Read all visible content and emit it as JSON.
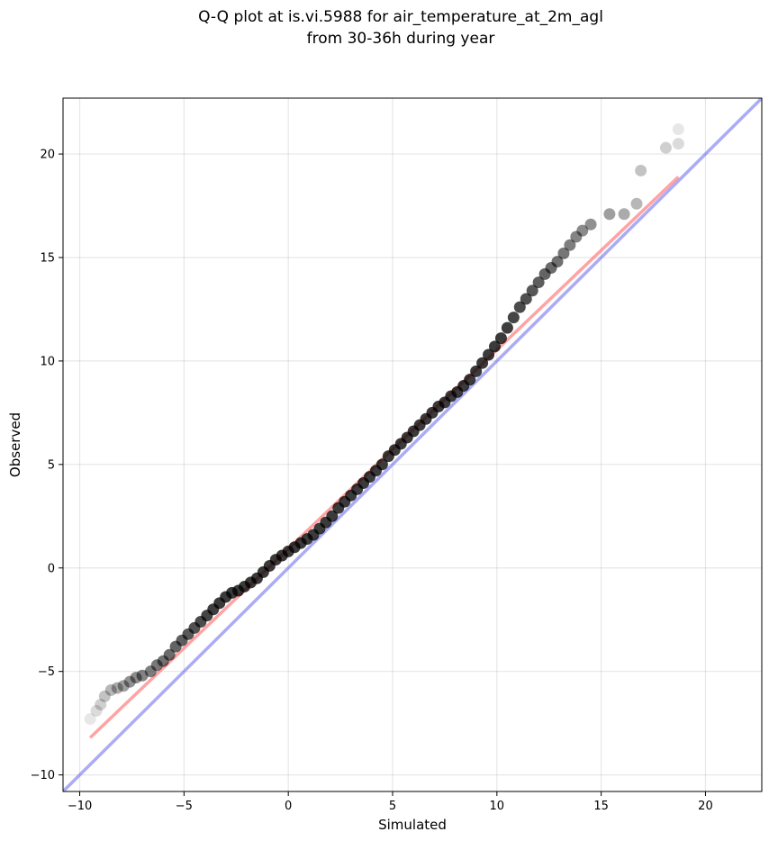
{
  "chart_data": {
    "type": "scatter",
    "title_line1": "Q-Q plot at is.vi.5988 for air_temperature_at_2m_agl",
    "title_line2": "from 30-36h during year",
    "xlabel": "Simulated",
    "ylabel": "Observed",
    "xlim": [
      -10.8,
      22.7
    ],
    "ylim": [
      -10.8,
      22.7
    ],
    "xticks": [
      -10,
      -5,
      0,
      5,
      10,
      15,
      20
    ],
    "yticks": [
      -10,
      -5,
      0,
      5,
      10,
      15,
      20
    ],
    "xtick_labels": [
      "−10",
      "−5",
      "0",
      "5",
      "10",
      "15",
      "20"
    ],
    "ytick_labels": [
      "−10",
      "−5",
      "0",
      "5",
      "10",
      "15",
      "20"
    ],
    "grid": true,
    "series": [
      {
        "kind": "quantile_points",
        "color": "#000000",
        "points": [
          [
            -9.5,
            -7.3
          ],
          [
            -9.2,
            -6.9
          ],
          [
            -9.0,
            -6.6
          ],
          [
            -8.8,
            -6.2
          ],
          [
            -8.5,
            -5.9
          ],
          [
            -8.2,
            -5.8
          ],
          [
            -7.9,
            -5.7
          ],
          [
            -7.6,
            -5.5
          ],
          [
            -7.3,
            -5.3
          ],
          [
            -7.0,
            -5.2
          ],
          [
            -6.6,
            -5.0
          ],
          [
            -6.3,
            -4.7
          ],
          [
            -6.0,
            -4.5
          ],
          [
            -5.7,
            -4.2
          ],
          [
            -5.4,
            -3.8
          ],
          [
            -5.1,
            -3.5
          ],
          [
            -4.8,
            -3.2
          ],
          [
            -4.5,
            -2.9
          ],
          [
            -4.2,
            -2.6
          ],
          [
            -3.9,
            -2.3
          ],
          [
            -3.6,
            -2.0
          ],
          [
            -3.3,
            -1.7
          ],
          [
            -3.0,
            -1.4
          ],
          [
            -2.7,
            -1.2
          ],
          [
            -2.4,
            -1.1
          ],
          [
            -2.1,
            -0.9
          ],
          [
            -1.8,
            -0.7
          ],
          [
            -1.5,
            -0.5
          ],
          [
            -1.2,
            -0.2
          ],
          [
            -0.9,
            0.1
          ],
          [
            -0.6,
            0.4
          ],
          [
            -0.3,
            0.6
          ],
          [
            0.0,
            0.8
          ],
          [
            0.3,
            1.0
          ],
          [
            0.6,
            1.2
          ],
          [
            0.9,
            1.4
          ],
          [
            1.2,
            1.6
          ],
          [
            1.5,
            1.9
          ],
          [
            1.8,
            2.2
          ],
          [
            2.1,
            2.5
          ],
          [
            2.4,
            2.9
          ],
          [
            2.7,
            3.2
          ],
          [
            3.0,
            3.5
          ],
          [
            3.3,
            3.8
          ],
          [
            3.6,
            4.1
          ],
          [
            3.9,
            4.4
          ],
          [
            4.2,
            4.7
          ],
          [
            4.5,
            5.0
          ],
          [
            4.8,
            5.4
          ],
          [
            5.1,
            5.7
          ],
          [
            5.4,
            6.0
          ],
          [
            5.7,
            6.3
          ],
          [
            6.0,
            6.6
          ],
          [
            6.3,
            6.9
          ],
          [
            6.6,
            7.2
          ],
          [
            6.9,
            7.5
          ],
          [
            7.2,
            7.8
          ],
          [
            7.5,
            8.0
          ],
          [
            7.8,
            8.3
          ],
          [
            8.1,
            8.5
          ],
          [
            8.4,
            8.8
          ],
          [
            8.7,
            9.1
          ],
          [
            9.0,
            9.5
          ],
          [
            9.3,
            9.9
          ],
          [
            9.6,
            10.3
          ],
          [
            9.9,
            10.7
          ],
          [
            10.2,
            11.1
          ],
          [
            10.5,
            11.6
          ],
          [
            10.8,
            12.1
          ],
          [
            11.1,
            12.6
          ],
          [
            11.4,
            13.0
          ],
          [
            11.7,
            13.4
          ],
          [
            12.0,
            13.8
          ],
          [
            12.3,
            14.2
          ],
          [
            12.6,
            14.5
          ],
          [
            12.9,
            14.8
          ],
          [
            13.2,
            15.2
          ],
          [
            13.5,
            15.6
          ],
          [
            13.8,
            16.0
          ],
          [
            14.1,
            16.3
          ],
          [
            14.5,
            16.6
          ],
          [
            15.4,
            17.1
          ],
          [
            16.1,
            17.1
          ],
          [
            16.7,
            17.6
          ],
          [
            16.9,
            19.2
          ],
          [
            18.1,
            20.3
          ],
          [
            18.7,
            20.5
          ],
          [
            18.7,
            21.2
          ]
        ]
      },
      {
        "kind": "fit_line",
        "color": "#ff6666",
        "points": [
          [
            -9.5,
            -8.2
          ],
          [
            18.7,
            18.9
          ]
        ]
      },
      {
        "kind": "identity_line",
        "color": "#6666ee",
        "points": [
          [
            -10.8,
            -10.8
          ],
          [
            22.7,
            22.7
          ]
        ]
      }
    ]
  }
}
